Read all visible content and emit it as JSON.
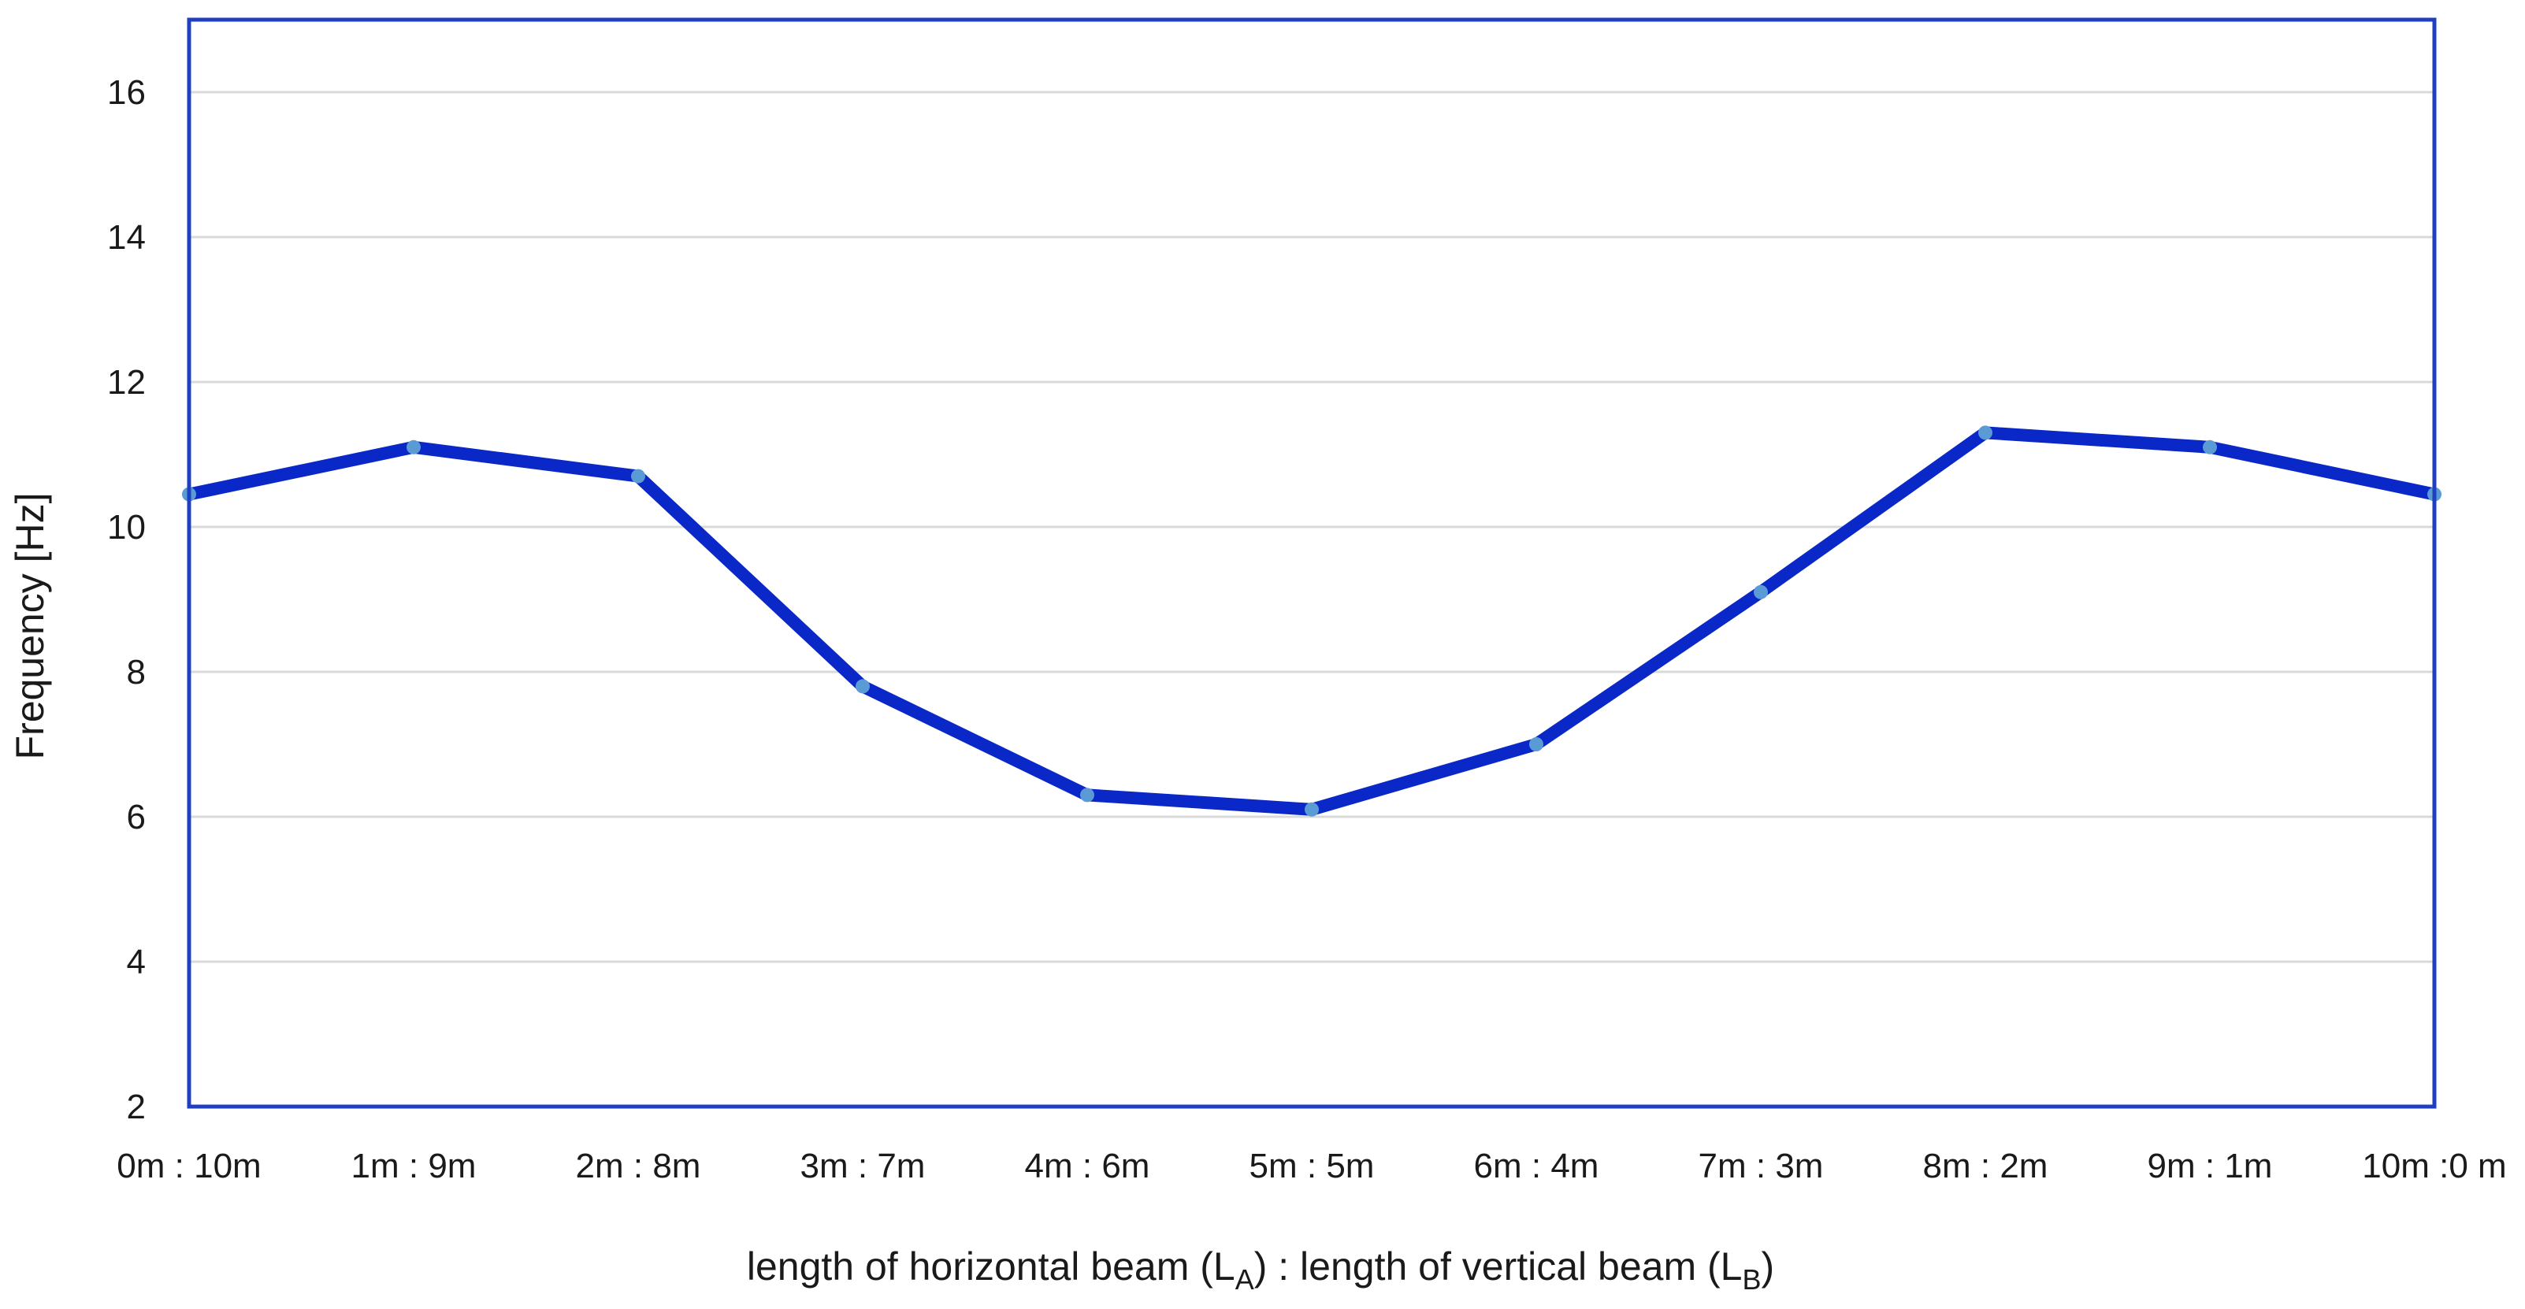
{
  "chart_data": {
    "type": "line",
    "categories": [
      "0m : 10m",
      "1m : 9m",
      "2m : 8m",
      "3m : 7m",
      "4m : 6m",
      "5m : 5m",
      "6m : 4m",
      "7m : 3m",
      "8m : 2m",
      "9m : 1m",
      "10m :0 m"
    ],
    "series": [
      {
        "values": [
          10.45,
          11.1,
          10.7,
          7.8,
          6.3,
          6.1,
          7.0,
          9.1,
          11.3,
          11.1,
          10.45
        ]
      }
    ],
    "ylabel": "Frequency [Hz]",
    "xlabel": {
      "pre_a": "length of horizontal beam (L",
      "sub_a": "A",
      "mid": ") : length of vertical beam (L",
      "sub_b": "B",
      "post": ")"
    },
    "ylim": [
      2,
      17
    ],
    "yticks": [
      2,
      4,
      6,
      8,
      10,
      12,
      14,
      16
    ],
    "grid": true,
    "colors": {
      "line": "#0a28c8",
      "marker": "#5b9bd5",
      "border": "#1f3fbf",
      "grid": "#d9d9d9"
    }
  }
}
